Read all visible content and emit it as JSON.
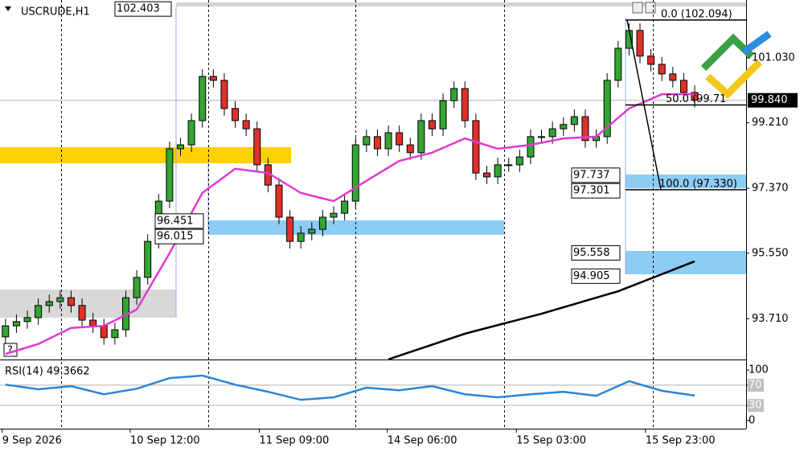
{
  "chart_data": [
    {
      "type": "candlestick",
      "title": "USCRUDE,H1",
      "open": [
        93.2,
        93.51,
        93.63,
        93.74,
        94.08,
        94.19,
        94.3,
        94.08,
        93.67,
        93.51,
        93.18,
        93.4,
        94.3,
        94.87,
        95.88,
        97.01,
        98.48,
        98.59,
        99.27,
        100.51,
        100.4,
        99.61,
        99.27,
        99.04,
        98.03,
        97.46,
        96.56,
        95.88,
        96.11,
        96.22,
        96.56,
        96.67,
        97.01,
        98.59,
        98.82,
        98.48,
        98.93,
        98.59,
        98.37,
        99.27,
        99.04,
        99.83,
        100.17,
        99.27,
        97.8,
        97.69,
        98.03,
        98.03,
        98.25,
        98.82,
        98.82,
        99.04,
        99.16,
        99.38,
        98.71,
        98.82,
        100.4,
        101.3,
        101.8,
        101.08,
        100.85,
        100.58,
        100.4,
        100.06
      ],
      "high": [
        93.71,
        93.83,
        93.94,
        94.28,
        94.39,
        94.5,
        94.5,
        94.28,
        93.87,
        93.71,
        93.6,
        94.5,
        95.07,
        96.08,
        97.21,
        98.68,
        98.79,
        99.47,
        100.71,
        100.71,
        100.6,
        99.81,
        99.47,
        99.24,
        98.23,
        97.66,
        96.76,
        96.31,
        96.42,
        96.76,
        96.87,
        97.21,
        98.79,
        99.02,
        99.02,
        99.13,
        99.13,
        98.79,
        99.47,
        99.47,
        100.03,
        100.37,
        100.37,
        99.47,
        98.0,
        98.23,
        98.23,
        98.45,
        99.02,
        99.02,
        99.24,
        99.36,
        99.58,
        99.58,
        99.02,
        100.6,
        101.5,
        102.0,
        102.0,
        101.28,
        101.05,
        100.78,
        100.6,
        100.26
      ],
      "low": [
        93.0,
        93.31,
        93.43,
        93.54,
        93.88,
        93.99,
        93.88,
        93.47,
        93.31,
        92.98,
        92.98,
        93.2,
        94.1,
        94.67,
        95.68,
        96.81,
        98.28,
        98.39,
        99.07,
        100.2,
        99.41,
        99.07,
        98.84,
        97.83,
        97.26,
        96.36,
        95.68,
        95.68,
        95.91,
        96.02,
        96.36,
        96.47,
        96.81,
        98.39,
        98.28,
        98.28,
        98.39,
        98.17,
        98.17,
        98.84,
        98.84,
        99.63,
        99.07,
        97.6,
        97.49,
        97.49,
        97.83,
        97.83,
        98.05,
        98.62,
        98.62,
        98.84,
        98.96,
        98.51,
        98.51,
        98.62,
        100.2,
        101.1,
        100.88,
        100.65,
        100.38,
        100.2,
        99.86,
        99.64
      ],
      "close": [
        93.51,
        93.63,
        93.74,
        94.08,
        94.19,
        94.3,
        94.08,
        93.67,
        93.51,
        93.18,
        93.4,
        94.3,
        94.87,
        95.88,
        97.01,
        98.48,
        98.59,
        99.27,
        100.51,
        100.4,
        99.61,
        99.27,
        99.04,
        98.03,
        97.46,
        96.56,
        95.88,
        96.11,
        96.22,
        96.56,
        96.67,
        97.01,
        98.59,
        98.82,
        98.48,
        98.93,
        98.59,
        98.37,
        99.27,
        99.04,
        99.83,
        100.17,
        99.27,
        97.8,
        97.69,
        98.03,
        98.03,
        98.25,
        98.82,
        98.82,
        99.04,
        99.16,
        99.38,
        98.71,
        98.82,
        100.4,
        101.3,
        101.8,
        101.08,
        100.85,
        100.58,
        100.4,
        100.06,
        99.84
      ],
      "up_color": "#33a532",
      "down_color": "#e0302a",
      "xlim": [
        -0.5,
        67.7
      ],
      "ylim": [
        92.565,
        102.655
      ],
      "yticks": [
        {
          "value": 101.03,
          "label": "101.030"
        },
        {
          "value": 99.21,
          "label": "99.210"
        },
        {
          "value": 97.37,
          "label": "97.370"
        },
        {
          "value": 95.55,
          "label": "95.550"
        },
        {
          "value": 93.71,
          "label": "93.710"
        }
      ],
      "xticks": [
        {
          "value": -0.3,
          "label": "9 Sep 2026"
        },
        {
          "value": 11.4,
          "label": "10 Sep 12:00"
        },
        {
          "value": 23.2,
          "label": "11 Sep 09:00"
        },
        {
          "value": 34.9,
          "label": "14 Sep 06:00"
        },
        {
          "value": 46.7,
          "label": "15 Sep 03:00"
        },
        {
          "value": 58.5,
          "label": "15 Sep 23:00"
        }
      ],
      "day_separators": [
        5.1,
        18.5,
        32.0,
        45.6,
        59.2
      ],
      "overlays": [
        {
          "color": "#e03ad0",
          "x": [
            0,
            3,
            6,
            9,
            12,
            15,
            18,
            21,
            24,
            27,
            30,
            33,
            36,
            39,
            42,
            45,
            48,
            51,
            54,
            57,
            60,
            63
          ],
          "values": [
            92.72,
            93.0,
            93.45,
            93.51,
            93.97,
            95.55,
            97.24,
            97.92,
            97.8,
            97.24,
            97.01,
            97.58,
            98.14,
            98.37,
            98.77,
            98.48,
            98.59,
            98.77,
            98.82,
            99.61,
            100.01,
            100.01
          ]
        },
        {
          "color": "#000000",
          "x": [
            35,
            42,
            49,
            56,
            63
          ],
          "values": [
            92.57,
            93.29,
            93.85,
            94.48,
            95.32
          ]
        }
      ],
      "price_labels": [
        {
          "value": 102.403,
          "label": "102.403"
        },
        {
          "value": 96.451,
          "label": "96.451"
        },
        {
          "value": 96.015,
          "label": "96.015"
        },
        {
          "value": 97.737,
          "label": "97.737"
        },
        {
          "value": 97.301,
          "label": "97.301"
        },
        {
          "value": 95.558,
          "label": "95.558"
        },
        {
          "value": 94.905,
          "label": "94.905"
        }
      ],
      "fib_levels": [
        {
          "value": 102.094,
          "label": "0.0 (102.094)"
        },
        {
          "value": 99.71,
          "label": "50.0 (99.71"
        },
        {
          "value": 97.33,
          "label": "100.0 (97.330)"
        }
      ],
      "last_price": {
        "value": 99.84,
        "label": "99.840"
      }
    },
    {
      "type": "line",
      "title": "RSI(14) 49.3662",
      "color": "#2a86d6",
      "x": [
        0,
        3,
        6,
        9,
        12,
        15,
        18,
        21,
        24,
        27,
        30,
        33,
        36,
        39,
        42,
        45,
        48,
        51,
        54,
        57,
        60,
        63
      ],
      "values": [
        71,
        62,
        68,
        52,
        63,
        84,
        89,
        71,
        57,
        41,
        46,
        65,
        60,
        68,
        52,
        46,
        52,
        57,
        49,
        78,
        59,
        49.37
      ],
      "xlim": [
        -0.5,
        67.7
      ],
      "ylim": [
        -16,
        116
      ],
      "yticks": [
        100,
        70,
        30,
        0
      ],
      "levels": [
        70,
        30
      ]
    }
  ]
}
